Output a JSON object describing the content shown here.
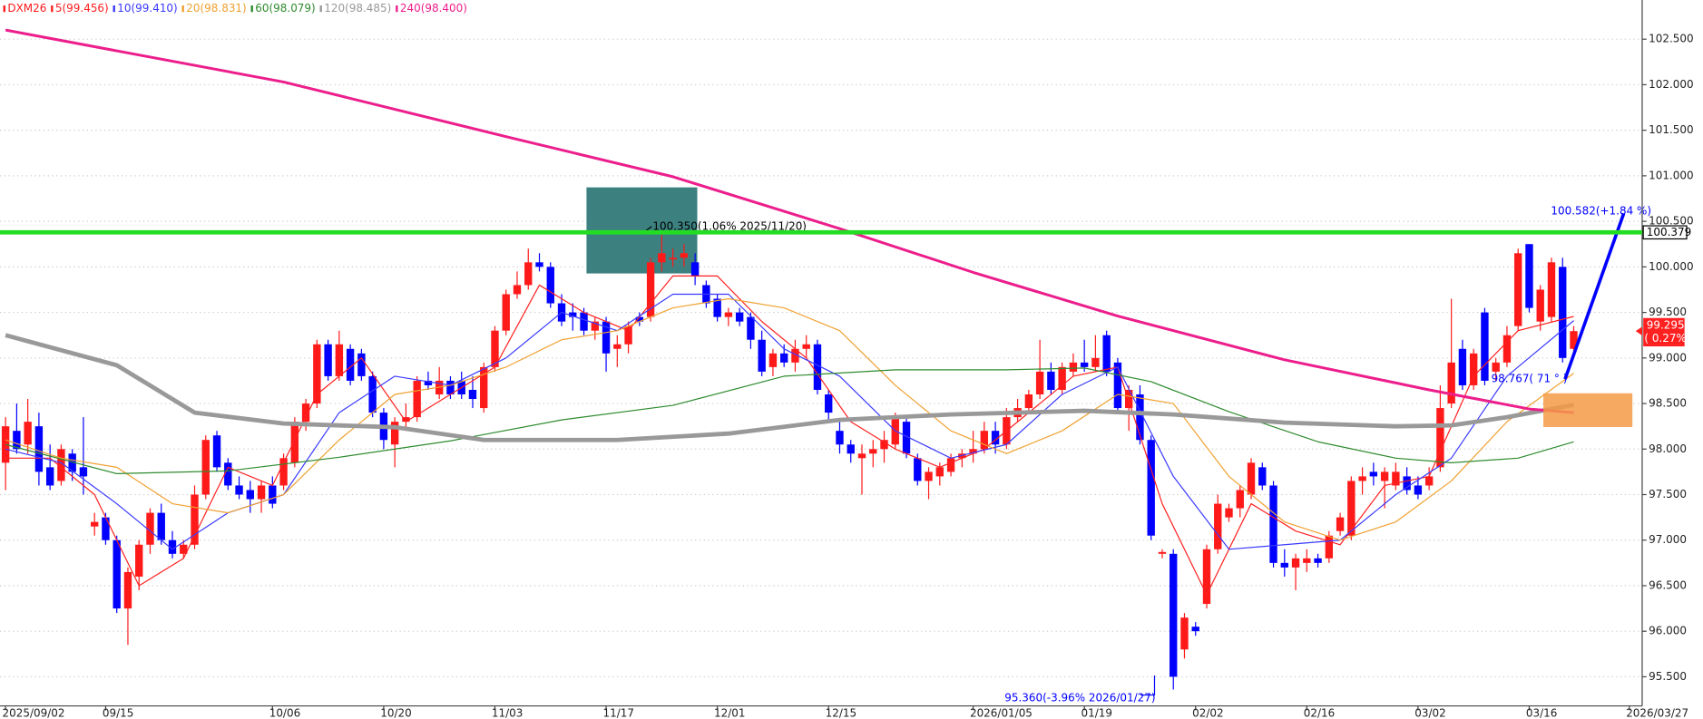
{
  "chart_data": {
    "type": "candlestick",
    "symbol": "DXM26",
    "up_color": "#ff1a1a",
    "down_color": "#0000ff",
    "grid": true,
    "ylim": [
      95.18,
      102.93
    ],
    "yticks": [
      {
        "value": 95.5,
        "label": "95.500"
      },
      {
        "value": 96,
        "label": "96.000"
      },
      {
        "value": 96.5,
        "label": "96.500"
      },
      {
        "value": 97,
        "label": "97.000"
      },
      {
        "value": 97.5,
        "label": "97.500"
      },
      {
        "value": 98,
        "label": "98.000"
      },
      {
        "value": 98.5,
        "label": "98.500"
      },
      {
        "value": 99,
        "label": "99.000"
      },
      {
        "value": 99.5,
        "label": "99.500"
      },
      {
        "value": 100,
        "label": "100.000"
      },
      {
        "value": 100.5,
        "label": "100.500"
      },
      {
        "value": 101,
        "label": "101.000"
      },
      {
        "value": 101.5,
        "label": "101.500"
      },
      {
        "value": 102,
        "label": "102.000"
      },
      {
        "value": 102.5,
        "label": "102.500"
      }
    ],
    "categories": [
      "2025/09/02",
      null,
      null,
      null,
      null,
      null,
      null,
      null,
      null,
      "09/15",
      null,
      null,
      null,
      null,
      null,
      null,
      null,
      null,
      null,
      null,
      null,
      null,
      null,
      null,
      "10/06",
      null,
      null,
      null,
      null,
      null,
      null,
      null,
      null,
      null,
      "10/20",
      null,
      null,
      null,
      null,
      null,
      null,
      null,
      null,
      null,
      "11/03",
      null,
      null,
      null,
      null,
      null,
      null,
      null,
      null,
      null,
      "11/17",
      null,
      null,
      null,
      null,
      null,
      null,
      null,
      null,
      null,
      "12/01",
      null,
      null,
      null,
      null,
      null,
      null,
      null,
      null,
      null,
      "12/15",
      null,
      null,
      null,
      null,
      null,
      null,
      null,
      null,
      null,
      null,
      null,
      null,
      "2026/01/05",
      null,
      null,
      null,
      null,
      null,
      null,
      null,
      null,
      null,
      "01/19",
      null,
      null,
      null,
      null,
      null,
      null,
      null,
      null,
      null,
      "02/02",
      null,
      null,
      null,
      null,
      null,
      null,
      null,
      null,
      null,
      "02/16",
      null,
      null,
      null,
      null,
      null,
      null,
      null,
      null,
      null,
      "03/02",
      null,
      null,
      null,
      null,
      null,
      null,
      null,
      null,
      null,
      "03/16",
      null,
      null,
      null,
      null,
      null,
      null,
      null,
      null,
      "2026/03/27"
    ],
    "ohlc": [
      [
        97.85,
        98.35,
        97.55,
        98.25
      ],
      [
        98.2,
        98.5,
        97.95,
        98.0
      ],
      [
        98.05,
        98.55,
        97.95,
        98.3
      ],
      [
        98.25,
        98.4,
        97.6,
        97.75
      ],
      [
        97.8,
        98.05,
        97.55,
        97.6
      ],
      [
        97.65,
        98.05,
        97.6,
        98.0
      ],
      [
        97.95,
        98.0,
        97.65,
        97.75
      ],
      [
        97.8,
        98.35,
        97.5,
        97.7
      ],
      [
        97.15,
        97.3,
        97.05,
        97.2
      ],
      [
        97.25,
        97.3,
        96.95,
        97.0
      ],
      [
        97.0,
        97.05,
        96.2,
        96.25
      ],
      [
        96.25,
        96.7,
        95.85,
        96.65
      ],
      [
        96.6,
        97.0,
        96.45,
        96.95
      ],
      [
        96.95,
        97.35,
        96.85,
        97.3
      ],
      [
        97.3,
        97.4,
        96.95,
        97.0
      ],
      [
        97.0,
        97.1,
        96.8,
        96.85
      ],
      [
        96.85,
        97.0,
        96.8,
        96.95
      ],
      [
        96.95,
        97.6,
        96.9,
        97.5
      ],
      [
        97.5,
        98.15,
        97.45,
        98.1
      ],
      [
        98.15,
        98.2,
        97.75,
        97.8
      ],
      [
        97.85,
        97.9,
        97.55,
        97.6
      ],
      [
        97.6,
        97.7,
        97.45,
        97.5
      ],
      [
        97.55,
        97.65,
        97.3,
        97.45
      ],
      [
        97.45,
        97.65,
        97.3,
        97.6
      ],
      [
        97.6,
        97.7,
        97.35,
        97.4
      ],
      [
        97.6,
        97.95,
        97.55,
        97.9
      ],
      [
        97.85,
        98.35,
        97.8,
        98.3
      ],
      [
        98.3,
        98.55,
        98.2,
        98.5
      ],
      [
        98.5,
        99.2,
        98.45,
        99.15
      ],
      [
        99.15,
        99.2,
        98.75,
        98.8
      ],
      [
        98.8,
        99.3,
        98.75,
        99.15
      ],
      [
        99.1,
        99.15,
        98.7,
        98.75
      ],
      [
        99.05,
        99.1,
        98.75,
        98.8
      ],
      [
        98.8,
        98.85,
        98.35,
        98.4
      ],
      [
        98.4,
        98.45,
        98.0,
        98.1
      ],
      [
        98.05,
        98.35,
        97.8,
        98.3
      ],
      [
        98.3,
        98.5,
        98.2,
        98.35
      ],
      [
        98.35,
        98.8,
        98.3,
        98.75
      ],
      [
        98.75,
        98.85,
        98.65,
        98.7
      ],
      [
        98.6,
        98.9,
        98.55,
        98.75
      ],
      [
        98.75,
        98.8,
        98.55,
        98.6
      ],
      [
        98.75,
        98.85,
        98.55,
        98.6
      ],
      [
        98.65,
        98.8,
        98.45,
        98.55
      ],
      [
        98.45,
        98.95,
        98.4,
        98.9
      ],
      [
        98.9,
        99.35,
        98.85,
        99.3
      ],
      [
        99.3,
        99.75,
        99.25,
        99.7
      ],
      [
        99.7,
        99.95,
        99.65,
        99.8
      ],
      [
        99.8,
        100.2,
        99.75,
        100.05
      ],
      [
        100.05,
        100.15,
        99.95,
        100.0
      ],
      [
        100.0,
        100.05,
        99.55,
        99.6
      ],
      [
        99.6,
        99.7,
        99.35,
        99.4
      ],
      [
        99.5,
        99.6,
        99.3,
        99.45
      ],
      [
        99.5,
        99.55,
        99.25,
        99.3
      ],
      [
        99.3,
        99.45,
        99.2,
        99.4
      ],
      [
        99.4,
        99.45,
        98.85,
        99.05
      ],
      [
        99.1,
        99.25,
        98.9,
        99.15
      ],
      [
        99.15,
        99.4,
        99.05,
        99.35
      ],
      [
        99.45,
        99.5,
        99.35,
        99.4
      ],
      [
        99.45,
        100.1,
        99.4,
        100.05
      ],
      [
        100.05,
        100.35,
        99.95,
        100.15
      ],
      [
        100.1,
        100.2,
        100.0,
        100.1
      ],
      [
        100.1,
        100.25,
        100.0,
        100.15
      ],
      [
        100.05,
        100.15,
        99.8,
        99.9
      ],
      [
        99.8,
        99.85,
        99.55,
        99.6
      ],
      [
        99.65,
        99.7,
        99.4,
        99.45
      ],
      [
        99.45,
        99.55,
        99.35,
        99.5
      ],
      [
        99.5,
        99.55,
        99.35,
        99.4
      ],
      [
        99.45,
        99.5,
        99.1,
        99.2
      ],
      [
        99.2,
        99.3,
        98.8,
        98.85
      ],
      [
        98.9,
        99.1,
        98.8,
        99.05
      ],
      [
        99.05,
        99.15,
        98.9,
        98.95
      ],
      [
        98.95,
        99.2,
        98.85,
        99.1
      ],
      [
        99.1,
        99.25,
        99.0,
        99.15
      ],
      [
        99.15,
        99.2,
        98.6,
        98.65
      ],
      [
        98.6,
        98.65,
        98.3,
        98.4
      ],
      [
        98.2,
        98.3,
        97.95,
        98.05
      ],
      [
        98.05,
        98.1,
        97.85,
        97.95
      ],
      [
        97.9,
        98.05,
        97.5,
        97.95
      ],
      [
        97.95,
        98.1,
        97.8,
        98.0
      ],
      [
        98.0,
        98.2,
        97.85,
        98.1
      ],
      [
        98.05,
        98.4,
        98.0,
        98.35
      ],
      [
        98.3,
        98.35,
        97.9,
        97.95
      ],
      [
        97.9,
        97.95,
        97.6,
        97.65
      ],
      [
        97.65,
        97.8,
        97.45,
        97.75
      ],
      [
        97.7,
        97.85,
        97.6,
        97.8
      ],
      [
        97.75,
        97.95,
        97.7,
        97.9
      ],
      [
        97.9,
        98.0,
        97.8,
        97.95
      ],
      [
        97.95,
        98.2,
        97.85,
        98.0
      ],
      [
        98.0,
        98.3,
        97.95,
        98.2
      ],
      [
        98.2,
        98.3,
        97.95,
        98.05
      ],
      [
        98.05,
        98.45,
        98.0,
        98.35
      ],
      [
        98.35,
        98.55,
        98.3,
        98.45
      ],
      [
        98.45,
        98.65,
        98.4,
        98.6
      ],
      [
        98.6,
        99.2,
        98.55,
        98.85
      ],
      [
        98.85,
        98.95,
        98.6,
        98.65
      ],
      [
        98.65,
        98.95,
        98.6,
        98.9
      ],
      [
        98.85,
        99.05,
        98.8,
        98.95
      ],
      [
        98.95,
        99.2,
        98.85,
        98.9
      ],
      [
        98.9,
        99.25,
        98.85,
        99.0
      ],
      [
        99.25,
        99.3,
        98.8,
        98.85
      ],
      [
        98.95,
        99.0,
        98.4,
        98.45
      ],
      [
        98.45,
        98.7,
        98.2,
        98.65
      ],
      [
        98.6,
        98.7,
        98.05,
        98.1
      ],
      [
        98.1,
        98.15,
        97.0,
        97.05
      ],
      [
        96.85,
        96.9,
        96.8,
        96.87
      ],
      [
        96.85,
        96.9,
        95.36,
        95.5
      ],
      [
        95.8,
        96.2,
        95.7,
        96.15
      ],
      [
        96.05,
        96.1,
        95.95,
        96.0
      ],
      [
        96.3,
        96.95,
        96.25,
        96.9
      ],
      [
        96.9,
        97.5,
        96.85,
        97.4
      ],
      [
        97.25,
        97.4,
        97.2,
        97.35
      ],
      [
        97.35,
        97.6,
        97.25,
        97.55
      ],
      [
        97.5,
        97.9,
        97.45,
        97.85
      ],
      [
        97.8,
        97.85,
        97.55,
        97.6
      ],
      [
        97.6,
        97.65,
        96.7,
        96.75
      ],
      [
        96.75,
        96.9,
        96.6,
        96.7
      ],
      [
        96.7,
        96.85,
        96.45,
        96.8
      ],
      [
        96.75,
        96.9,
        96.65,
        96.8
      ],
      [
        96.8,
        96.85,
        96.7,
        96.75
      ],
      [
        96.8,
        97.1,
        96.75,
        97.05
      ],
      [
        97.1,
        97.3,
        97.05,
        97.25
      ],
      [
        97.05,
        97.7,
        97.0,
        97.65
      ],
      [
        97.65,
        97.8,
        97.5,
        97.7
      ],
      [
        97.75,
        97.85,
        97.6,
        97.7
      ],
      [
        97.65,
        97.8,
        97.35,
        97.75
      ],
      [
        97.6,
        97.85,
        97.55,
        97.75
      ],
      [
        97.7,
        97.8,
        97.5,
        97.55
      ],
      [
        97.6,
        97.7,
        97.45,
        97.5
      ],
      [
        97.6,
        97.8,
        97.55,
        97.7
      ],
      [
        97.8,
        98.7,
        97.75,
        98.45
      ],
      [
        98.5,
        99.65,
        98.45,
        98.95
      ],
      [
        99.1,
        99.2,
        98.65,
        98.7
      ],
      [
        98.7,
        99.1,
        98.65,
        99.05
      ],
      [
        99.5,
        99.55,
        98.7,
        98.75
      ],
      [
        98.85,
        99.0,
        98.75,
        98.95
      ],
      [
        98.95,
        99.35,
        98.9,
        99.25
      ],
      [
        99.35,
        100.2,
        99.3,
        100.15
      ],
      [
        100.25,
        100.25,
        99.5,
        99.55
      ],
      [
        99.4,
        99.8,
        99.3,
        99.75
      ],
      [
        99.45,
        100.1,
        99.4,
        100.05
      ],
      [
        100.0,
        100.1,
        98.95,
        99.0
      ],
      [
        99.1,
        99.35,
        99.05,
        99.295
      ],
      null,
      null,
      null,
      null,
      null
    ],
    "series": [
      {
        "name": "5(99.456)",
        "color": "#ff2020",
        "width": 1,
        "x": [
          0,
          4,
          8,
          12,
          16,
          20,
          24,
          28,
          32,
          36,
          40,
          44,
          48,
          52,
          56,
          60,
          64,
          68,
          72,
          76,
          80,
          84,
          88,
          92,
          96,
          100,
          104,
          108,
          112,
          116,
          120,
          124,
          128,
          132,
          136,
          141
        ],
        "values": [
          97.9,
          97.9,
          97.5,
          96.5,
          96.8,
          97.8,
          97.6,
          98.6,
          99.0,
          98.3,
          98.6,
          98.9,
          99.8,
          99.5,
          99.3,
          99.9,
          99.9,
          99.4,
          99.0,
          98.3,
          98.0,
          97.8,
          98.0,
          98.4,
          98.8,
          98.9,
          97.4,
          96.4,
          97.4,
          97.1,
          96.95,
          97.6,
          97.7,
          98.8,
          99.3,
          99.456
        ]
      },
      {
        "name": "10(99.410)",
        "color": "#3a3aff",
        "width": 1,
        "x": [
          0,
          5,
          10,
          15,
          20,
          25,
          30,
          35,
          40,
          45,
          50,
          55,
          60,
          65,
          70,
          75,
          80,
          85,
          90,
          95,
          100,
          105,
          110,
          115,
          120,
          125,
          130,
          135,
          141
        ],
        "values": [
          98.0,
          97.85,
          97.4,
          96.9,
          97.3,
          97.5,
          98.4,
          98.8,
          98.7,
          99.0,
          99.5,
          99.3,
          99.7,
          99.7,
          99.1,
          98.8,
          98.2,
          97.9,
          98.05,
          98.6,
          98.9,
          97.7,
          96.9,
          96.95,
          97.0,
          97.5,
          97.9,
          98.8,
          99.41
        ]
      },
      {
        "name": "20(98.831)",
        "color": "#f0a030",
        "width": 1,
        "x": [
          0,
          5,
          10,
          15,
          20,
          25,
          30,
          35,
          40,
          45,
          50,
          55,
          60,
          65,
          70,
          75,
          80,
          85,
          90,
          95,
          100,
          105,
          110,
          115,
          120,
          125,
          130,
          135,
          141
        ],
        "values": [
          98.1,
          97.9,
          97.8,
          97.4,
          97.3,
          97.5,
          98.1,
          98.6,
          98.7,
          98.9,
          99.2,
          99.3,
          99.55,
          99.65,
          99.55,
          99.3,
          98.7,
          98.2,
          97.95,
          98.2,
          98.6,
          98.5,
          97.7,
          97.2,
          97.0,
          97.2,
          97.65,
          98.3,
          98.831
        ]
      },
      {
        "name": "60(98.079)",
        "color": "#2e8b2e",
        "width": 1,
        "x": [
          0,
          10,
          20,
          30,
          40,
          50,
          60,
          70,
          80,
          90,
          97,
          103,
          110,
          118,
          125,
          130,
          136,
          141
        ],
        "values": [
          98.05,
          97.73,
          97.76,
          97.91,
          98.09,
          98.32,
          98.48,
          98.8,
          98.87,
          98.87,
          98.89,
          98.74,
          98.41,
          98.08,
          97.9,
          97.85,
          97.9,
          98.079
        ]
      },
      {
        "name": "120(98.485)",
        "color": "#999999",
        "width": 4,
        "x": [
          0,
          10,
          17,
          25,
          35,
          43,
          55,
          65,
          75,
          85,
          97,
          105,
          115,
          125,
          130,
          135,
          141
        ],
        "values": [
          99.25,
          98.92,
          98.4,
          98.28,
          98.24,
          98.1,
          98.1,
          98.17,
          98.32,
          98.38,
          98.42,
          98.38,
          98.29,
          98.25,
          98.26,
          98.35,
          98.485
        ]
      },
      {
        "name": "240(98.400)",
        "color": "#ec1e8c",
        "width": 2.5,
        "x": [
          0,
          25,
          45,
          60,
          75,
          87,
          100,
          115,
          128,
          137,
          141
        ],
        "values": [
          102.6,
          102.03,
          101.43,
          100.99,
          100.42,
          99.94,
          99.46,
          98.98,
          98.65,
          98.44,
          98.4
        ]
      }
    ],
    "hline": {
      "value": 100.379,
      "color": "#22dd22"
    },
    "annotations": {
      "high": "100.350(1.06% 2025/11/20)",
      "low": "95.360(-3.96% 2026/01/27)",
      "target": "100.582(+1.84 %)",
      "angle": "98.767( 71 ° )",
      "change": "( 0.27%)"
    }
  }
}
